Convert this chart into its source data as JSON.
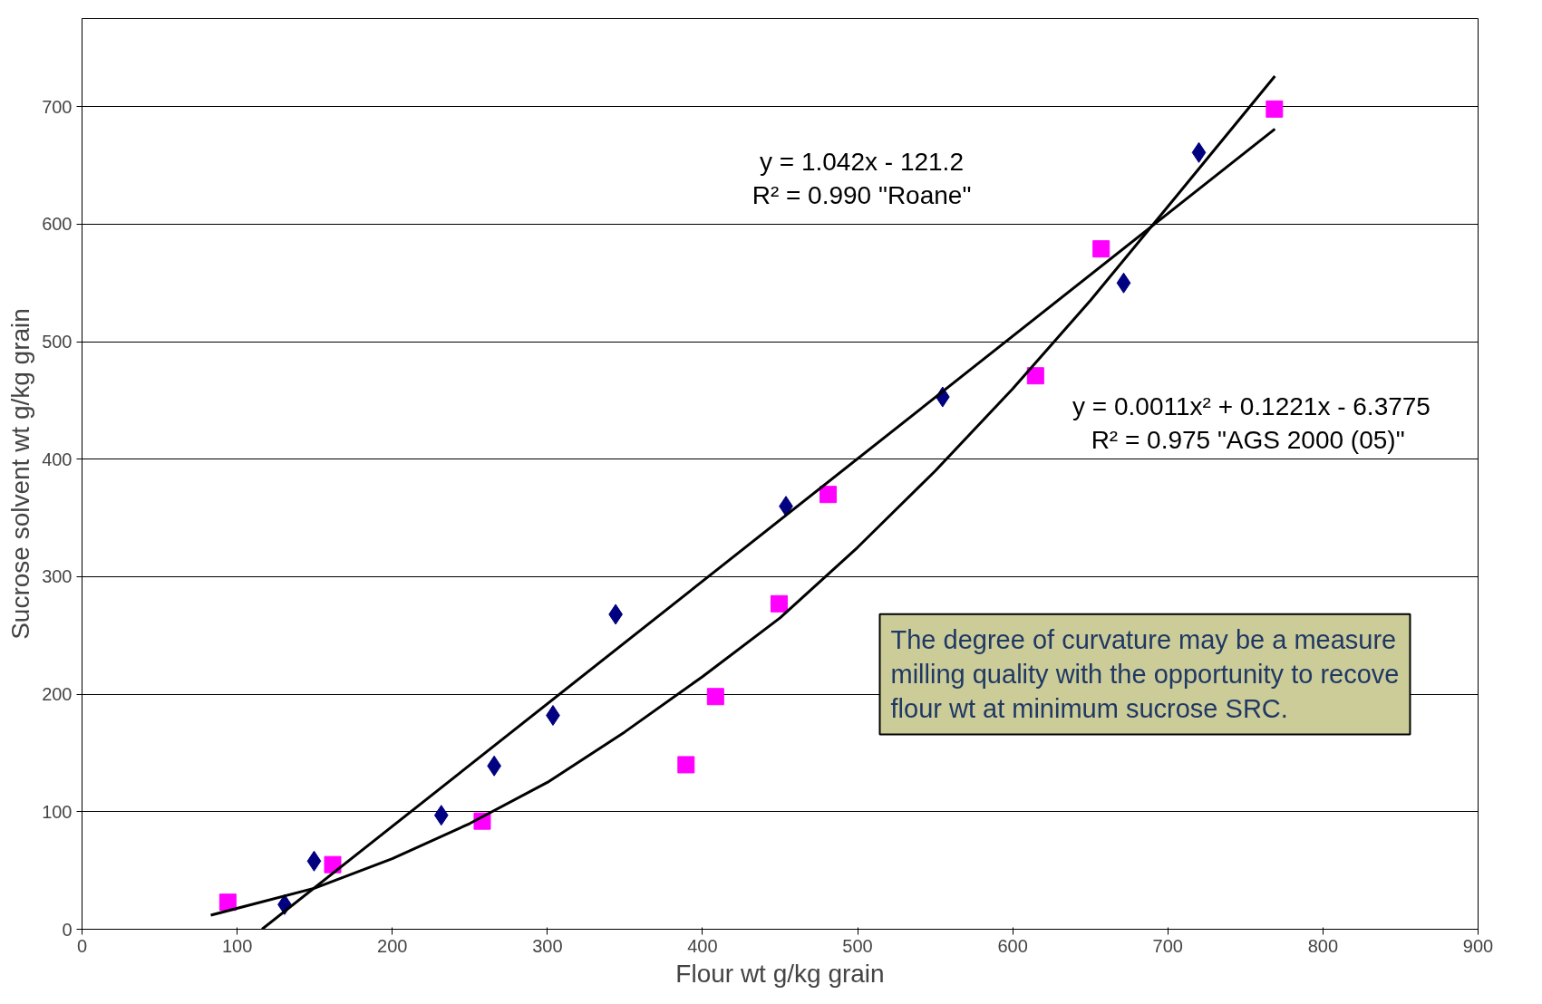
{
  "chart_data": {
    "type": "scatter",
    "xlabel": "Flour wt g/kg grain",
    "ylabel": "Sucrose solvent wt g/kg grain",
    "xlim": [
      0,
      900
    ],
    "ylim": [
      0,
      775
    ],
    "xticks": [
      0,
      100,
      200,
      300,
      400,
      500,
      600,
      700,
      800,
      900
    ],
    "yticks": [
      0,
      100,
      200,
      300,
      400,
      500,
      600,
      700
    ],
    "grid": "y",
    "series": [
      {
        "marker": "diamond",
        "color": "#000080",
        "x": [
          130.6,
          149.6,
          231.6,
          265.7,
          303.6,
          344,
          453.8,
          554.8,
          671.5,
          720
        ],
        "values": [
          21,
          58,
          97,
          139,
          182,
          268,
          360,
          453,
          550,
          661
        ]
      },
      {
        "marker": "square",
        "color": "#ff00ff",
        "x": [
          94,
          161.6,
          258,
          389.4,
          408.4,
          449.4,
          481,
          614.7,
          657,
          768.7
        ],
        "values": [
          23,
          55,
          92,
          140,
          198,
          277,
          370,
          471,
          579,
          698
        ]
      },
      {
        "type": "line",
        "color": "#000000",
        "x": [
          116,
          769
        ],
        "values": [
          0,
          681
        ]
      },
      {
        "type": "line",
        "color": "#000000",
        "x": [
          83,
          150,
          200,
          250,
          300,
          350,
          400,
          450,
          500,
          550,
          600,
          650,
          700,
          769
        ],
        "values": [
          12,
          35,
          60,
          90,
          125,
          168,
          215,
          265,
          325,
          390,
          460,
          535,
          615,
          726
        ]
      }
    ],
    "annotations": [
      "y = 1.042x - 121.2\nR² = 0.990 \"Roane\"",
      "y = 0.0011x² + 0.1221x - 6.3775\nR² = 0.975  \"AGS 2000 (05)\"",
      "The degree of curvature may be a measure\nmilling quality with the opportunity to recove\nflour wt at minimum sucrose SRC."
    ]
  }
}
